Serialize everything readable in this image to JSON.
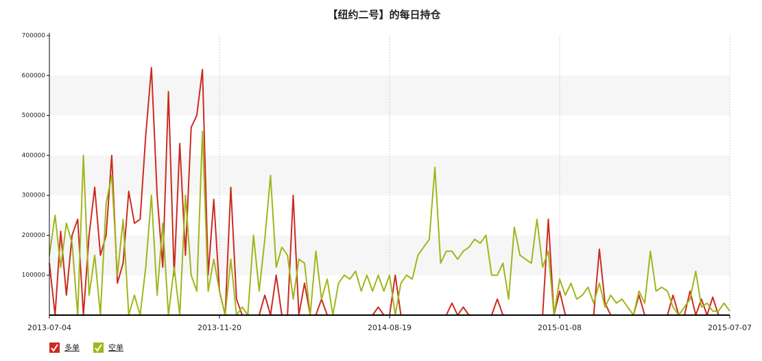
{
  "chart_data": {
    "type": "line",
    "title": "【纽约二号】的每日持仓",
    "categories": [
      "2013-07-04",
      null,
      null,
      null,
      null,
      null,
      null,
      null,
      null,
      null,
      null,
      null,
      null,
      null,
      null,
      null,
      null,
      null,
      null,
      null,
      null,
      null,
      null,
      null,
      null,
      null,
      null,
      null,
      null,
      null,
      "2013-11-20",
      null,
      null,
      null,
      null,
      null,
      null,
      null,
      null,
      null,
      null,
      null,
      null,
      null,
      null,
      null,
      null,
      null,
      null,
      null,
      null,
      null,
      null,
      null,
      null,
      null,
      null,
      null,
      null,
      null,
      "2014-08-19",
      null,
      null,
      null,
      null,
      null,
      null,
      null,
      null,
      null,
      null,
      null,
      null,
      null,
      null,
      null,
      null,
      null,
      null,
      null,
      null,
      null,
      null,
      null,
      null,
      null,
      null,
      null,
      null,
      null,
      "2015-01-08",
      null,
      null,
      null,
      null,
      null,
      null,
      null,
      null,
      null,
      null,
      null,
      null,
      null,
      null,
      null,
      null,
      null,
      null,
      null,
      null,
      null,
      null,
      null,
      null,
      null,
      null,
      null,
      null,
      null,
      "2015-07-07"
    ],
    "series": [
      {
        "name": "多单",
        "color": "#cc2a1e",
        "values": [
          130000,
          0,
          210000,
          50000,
          200000,
          240000,
          0,
          200000,
          320000,
          150000,
          200000,
          400000,
          80000,
          130000,
          310000,
          230000,
          240000,
          450000,
          620000,
          300000,
          120000,
          560000,
          100000,
          430000,
          150000,
          470000,
          500000,
          615000,
          100000,
          290000,
          60000,
          0,
          320000,
          40000,
          0,
          0,
          0,
          0,
          50000,
          0,
          100000,
          0,
          0,
          300000,
          0,
          80000,
          0,
          0,
          40000,
          0,
          0,
          0,
          0,
          0,
          0,
          0,
          0,
          0,
          20000,
          0,
          0,
          100000,
          0,
          0,
          0,
          0,
          0,
          0,
          0,
          0,
          0,
          30000,
          0,
          20000,
          0,
          0,
          0,
          0,
          0,
          40000,
          0,
          0,
          0,
          0,
          0,
          0,
          0,
          0,
          240000,
          0,
          60000,
          0,
          0,
          0,
          0,
          0,
          0,
          165000,
          30000,
          0,
          0,
          0,
          0,
          0,
          50000,
          0,
          0,
          0,
          0,
          0,
          50000,
          0,
          0,
          60000,
          0,
          40000,
          0,
          45000,
          0,
          0,
          0
        ]
      },
      {
        "name": "空单",
        "color": "#a0b519",
        "values": [
          150000,
          250000,
          120000,
          230000,
          180000,
          0,
          400000,
          50000,
          150000,
          0,
          280000,
          350000,
          100000,
          240000,
          0,
          50000,
          0,
          120000,
          300000,
          50000,
          230000,
          0,
          120000,
          0,
          300000,
          100000,
          60000,
          460000,
          60000,
          140000,
          60000,
          0,
          140000,
          0,
          20000,
          0,
          200000,
          60000,
          190000,
          350000,
          120000,
          170000,
          150000,
          40000,
          140000,
          130000,
          0,
          160000,
          40000,
          90000,
          0,
          80000,
          100000,
          90000,
          110000,
          60000,
          100000,
          60000,
          100000,
          60000,
          100000,
          0,
          80000,
          100000,
          90000,
          150000,
          170000,
          190000,
          370000,
          130000,
          160000,
          160000,
          140000,
          160000,
          170000,
          190000,
          180000,
          200000,
          100000,
          100000,
          130000,
          40000,
          220000,
          150000,
          140000,
          130000,
          240000,
          120000,
          160000,
          0,
          90000,
          50000,
          80000,
          40000,
          50000,
          70000,
          30000,
          80000,
          20000,
          50000,
          30000,
          40000,
          20000,
          0,
          60000,
          30000,
          160000,
          60000,
          70000,
          60000,
          20000,
          0,
          20000,
          40000,
          110000,
          20000,
          30000,
          10000,
          10000,
          30000,
          10000
        ]
      }
    ],
    "ylim": [
      0,
      700000
    ],
    "yticks": [
      100000,
      200000,
      300000,
      400000,
      500000,
      600000,
      700000
    ],
    "grid": true
  }
}
